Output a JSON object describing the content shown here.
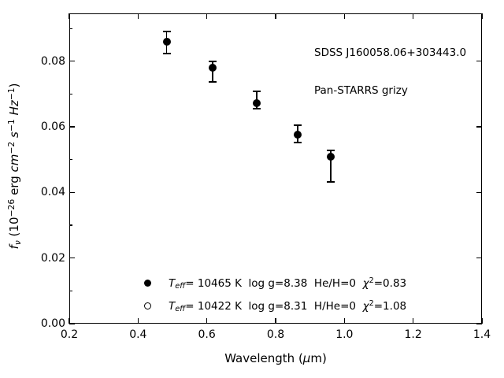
{
  "figure": {
    "annotation": {
      "line1": "SDSS J160058.06+303443.0",
      "line2": "Pan-STARRS grizy"
    },
    "colors": {
      "foreground": "#000000",
      "background": "#ffffff"
    }
  },
  "chart_data": {
    "type": "scatter",
    "title": "",
    "annotation_lines": [
      "SDSS J160058.06+303443.0",
      "Pan-STARRS grizy"
    ],
    "xlabel_text": "Wavelength (μm)",
    "ylabel_text": "fν (10−26 erg cm−2 s−1 Hz−1)",
    "xlabel_segments": [
      {
        "t": "Wavelength ("
      },
      {
        "t": "μ",
        "i": true
      },
      {
        "t": "m)"
      }
    ],
    "ylabel_segments": [
      {
        "t": "f",
        "i": true
      },
      {
        "t": "ν",
        "i": true,
        "sub": true
      },
      {
        "t": " (10"
      },
      {
        "t": "−26",
        "sup": true
      },
      {
        "t": " erg "
      },
      {
        "t": "cm",
        "i": true
      },
      {
        "t": "−2",
        "sup": true
      },
      {
        "t": " "
      },
      {
        "t": "s",
        "i": true
      },
      {
        "t": "−1",
        "sup": true
      },
      {
        "t": " "
      },
      {
        "t": "Hz",
        "i": true
      },
      {
        "t": "−1",
        "sup": true
      },
      {
        "t": ")"
      }
    ],
    "xlim": [
      0.2,
      1.4
    ],
    "ylim": [
      0,
      0.0946
    ],
    "grid": false,
    "x_ticks": [
      0.2,
      0.4,
      0.6,
      0.8,
      1.0,
      1.2,
      1.4
    ],
    "x_tick_labels": [
      "0.2",
      "0.4",
      "0.6",
      "0.8",
      "1.0",
      "1.2",
      "1.4"
    ],
    "y_ticks": [
      0,
      0.02,
      0.04,
      0.06,
      0.08
    ],
    "y_tick_labels": [
      "0.00",
      "0.02",
      "0.04",
      "0.06",
      "0.08"
    ],
    "y_minor_ticks": [
      0.01,
      0.03,
      0.05,
      0.07,
      0.09
    ],
    "series": [
      {
        "name": "Pan-STARRS grizy photometry",
        "marker": "filled-circle",
        "points": [
          {
            "band": "g",
            "x": 0.483,
            "y": 0.0859,
            "y_hi": 0.0891,
            "y_lo": 0.0823
          },
          {
            "band": "r",
            "x": 0.617,
            "y": 0.0781,
            "y_hi": 0.0799,
            "y_lo": 0.0738
          },
          {
            "band": "i",
            "x": 0.745,
            "y": 0.0673,
            "y_hi": 0.0708,
            "y_lo": 0.0655
          },
          {
            "band": "z",
            "x": 0.865,
            "y": 0.0577,
            "y_hi": 0.0605,
            "y_lo": 0.0552
          },
          {
            "band": "y",
            "x": 0.96,
            "y": 0.0509,
            "y_hi": 0.0528,
            "y_lo": 0.0432
          }
        ]
      }
    ],
    "legend": {
      "position": "lower center",
      "frame": false,
      "entries": [
        {
          "marker": "filled-circle",
          "text": "Teff= 10465 K  log g=8.38  He/H=0  χ²=0.83",
          "segments": [
            {
              "t": "T",
              "i": true
            },
            {
              "t": "eff",
              "i": true,
              "sub": true
            },
            {
              "t": "= 10465 K  log g=8.38  He/H=0  "
            },
            {
              "t": "χ",
              "i": true
            },
            {
              "t": "2",
              "sup": true
            },
            {
              "t": "=0.83"
            }
          ]
        },
        {
          "marker": "open-circle",
          "text": "Teff= 10422 K  log g=8.31  H/He=0  χ²=1.08",
          "segments": [
            {
              "t": "T",
              "i": true
            },
            {
              "t": "eff",
              "i": true,
              "sub": true
            },
            {
              "t": "= 10422 K  log g=8.31  H/He=0  "
            },
            {
              "t": "χ",
              "i": true
            },
            {
              "t": "2",
              "sup": true
            },
            {
              "t": "=1.08"
            }
          ]
        }
      ]
    }
  }
}
